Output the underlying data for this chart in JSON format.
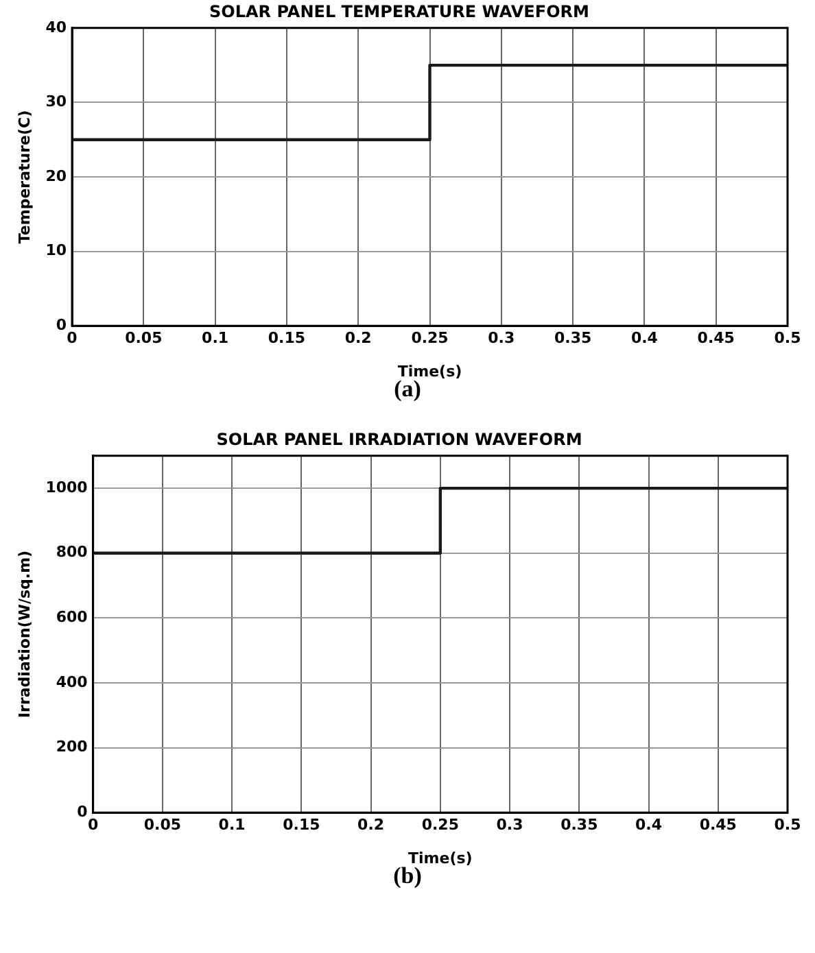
{
  "chart_data": [
    {
      "type": "step",
      "title": "SOLAR PANEL TEMPERATURE WAVEFORM",
      "xlabel": "Time(s)",
      "ylabel": "Temperature(C)",
      "x": [
        0,
        0.25,
        0.5
      ],
      "series": [
        {
          "color": "#1a1a1a",
          "values": [
            25,
            35,
            35
          ]
        }
      ],
      "xlim": [
        0,
        0.5
      ],
      "xticks": [
        0,
        0.05,
        0.1,
        0.15,
        0.2,
        0.25,
        0.3,
        0.35,
        0.4,
        0.45,
        0.5
      ],
      "ylim": [
        0,
        40
      ],
      "yticks": [
        0,
        10,
        20,
        30,
        40
      ],
      "grid": true,
      "annotations": [
        "(a)"
      ]
    },
    {
      "type": "step",
      "title": "SOLAR PANEL IRRADIATION WAVEFORM",
      "xlabel": "Time(s)",
      "ylabel": "Irradiation(W/sq.m)",
      "x": [
        0,
        0.25,
        0.5
      ],
      "series": [
        {
          "color": "#1a1a1a",
          "values": [
            800,
            1000,
            1000
          ]
        }
      ],
      "xlim": [
        0,
        0.5
      ],
      "xticks": [
        0,
        0.05,
        0.1,
        0.15,
        0.2,
        0.25,
        0.3,
        0.35,
        0.4,
        0.45,
        0.5
      ],
      "ylim": [
        0,
        1100
      ],
      "yticks": [
        0,
        200,
        400,
        600,
        800,
        1000
      ],
      "grid": true,
      "annotations": [
        "(b)"
      ]
    }
  ]
}
